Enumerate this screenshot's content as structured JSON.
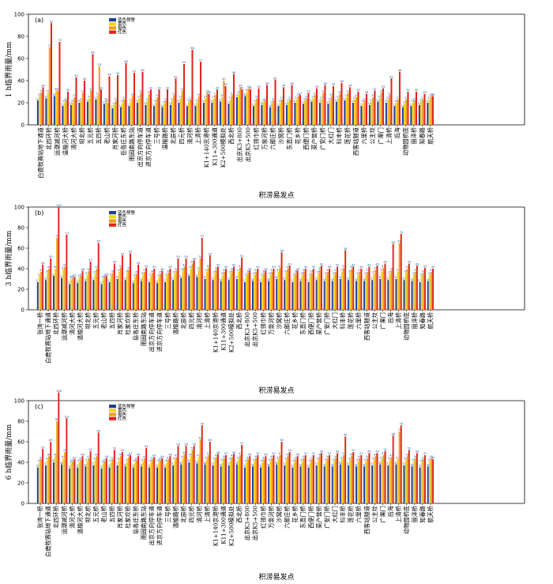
{
  "colors": {
    "blue": "#1f3f9a",
    "yellow": "#f4d21c",
    "orange": "#f29b1c",
    "red": "#e3231b"
  },
  "legend": [
    "蓝色预警",
    "黄色",
    "橙色",
    "红色"
  ],
  "xlabel": "积涝易发点",
  "chart_data": [
    {
      "type": "bar",
      "panel": "(a)",
      "ylabel": "1 h临界雨量/mm",
      "ylim": [
        0,
        100
      ],
      "yticks": [
        0,
        20,
        40,
        60,
        80,
        100
      ],
      "categories": [
        "白鹿牧赛站地下通道",
        "北四环桥",
        "运潮减河桥",
        "温榆河大桥",
        "清河大桥",
        "坝北桥",
        "五元桥",
        "五四桥",
        "老山桥",
        "肖家河桥",
        "岳各庄东桥",
        "雨园南路东站",
        "出京方向停车道",
        "进京方向停车道",
        "三号桥",
        "温榆路桥",
        "北辰桥",
        "四元桥",
        "清河桥",
        "上清桥",
        "K1+140京港桥",
        "K11+300通道",
        "K2+500模拟处",
        "西北桥",
        "出京K3+800",
        "出京K5+500",
        "红领巾桥",
        "万泉河桥",
        "六郎庄桥",
        "沙窝桥",
        "东直门桥",
        "花乡桥",
        "西便门桥",
        "菜户营桥",
        "广安门桥",
        "大红门",
        "科丰桥",
        "莲花桥",
        "西客站隧道",
        "六里桥",
        "公主坟",
        "广渠门",
        "上清桥",
        "后海",
        "动物园桥底",
        "丽泽桥",
        "知春路",
        "航天桥"
      ],
      "series": [
        {
          "name": "蓝色预警",
          "values": [
            22,
            24,
            26,
            17,
            18,
            20,
            21,
            23,
            19,
            15,
            16,
            17,
            20,
            18,
            17,
            16,
            18,
            20,
            17,
            17,
            20,
            20,
            21,
            19,
            25,
            26,
            17,
            18,
            16,
            17,
            18,
            20,
            19,
            21,
            20,
            19,
            21,
            22,
            20,
            17,
            18,
            21,
            20,
            17,
            16,
            17,
            18,
            20
          ]
        },
        {
          "name": "黄色",
          "values": [
            26,
            29,
            31,
            20,
            20,
            22,
            24,
            27,
            22,
            18,
            20,
            21,
            24,
            22,
            20,
            19,
            22,
            24,
            21,
            21,
            24,
            24,
            25,
            23,
            28,
            30,
            20,
            21,
            19,
            20,
            21,
            23,
            22,
            24,
            23,
            22,
            24,
            25,
            23,
            20,
            21,
            24,
            23,
            20,
            19,
            20,
            21,
            23
          ]
        },
        {
          "name": "橙色",
          "values": [
            29,
            70,
            31,
            22,
            25,
            29,
            31,
            53,
            20,
            22,
            23,
            26,
            29,
            28,
            25,
            22,
            27,
            31,
            23,
            26,
            29,
            27,
            40,
            27,
            34,
            33,
            24,
            22,
            22,
            23,
            23,
            26,
            24,
            27,
            29,
            26,
            28,
            29,
            25,
            22,
            25,
            29,
            27,
            23,
            23,
            22,
            23,
            26
          ]
        },
        {
          "name": "红色",
          "values": [
            34,
            92,
            75,
            30,
            43,
            40,
            64,
            32,
            44,
            45,
            56,
            47,
            48,
            32,
            32,
            32,
            42,
            55,
            68,
            57,
            28,
            32,
            35,
            46,
            32,
            32,
            33,
            36,
            41,
            34,
            36,
            27,
            29,
            33,
            36,
            35,
            38,
            34,
            30,
            28,
            31,
            33,
            42,
            48,
            30,
            30,
            28,
            26
          ]
        }
      ]
    },
    {
      "type": "bar",
      "panel": "(b)",
      "ylabel": "3 h临界雨量/mm",
      "ylim": [
        0,
        100
      ],
      "yticks": [
        0,
        20,
        40,
        60,
        80,
        100
      ],
      "categories": [
        "张湾一桥",
        "白鹿牧赛站地下通道",
        "北四环桥",
        "运潮减河桥",
        "清河大桥",
        "温榆河大桥",
        "坝北桥",
        "五元桥",
        "老山桥",
        "五四桥",
        "肖家河桥",
        "杜家坎桥",
        "岳各庄东桥",
        "雨园南路东站",
        "出京方向停车道",
        "进京方向停车道",
        "三号桥",
        "温榆路桥",
        "北辰桥",
        "四元桥",
        "清河桥",
        "上清桥",
        "K1+140京港桥",
        "K11+300通道",
        "K2+500模拟处",
        "西北桥",
        "出京K3+800",
        "出京K5+500",
        "红领巾桥",
        "万泉河桥",
        "沙窝桥",
        "六郎庄桥",
        "花乡桥",
        "东直门桥",
        "西便门桥",
        "菜户营桥",
        "广安门桥",
        "大红门",
        "科丰桥",
        "莲花桥",
        "六里桥",
        "西客站隧道",
        "公主坟",
        "广渠门",
        "后海",
        "上清桥",
        "动物园桥底",
        "丽泽桥",
        "知春路",
        "航天桥"
      ],
      "series": [
        {
          "name": "蓝色预警",
          "values": [
            27,
            29,
            33,
            31,
            25,
            26,
            28,
            29,
            25,
            27,
            30,
            29,
            26,
            28,
            27,
            26,
            27,
            29,
            31,
            33,
            32,
            30,
            29,
            28,
            29,
            30,
            27,
            28,
            27,
            28,
            30,
            29,
            27,
            28,
            27,
            29,
            28,
            28,
            30,
            29,
            28,
            28,
            29,
            30,
            29,
            30,
            29,
            28,
            27,
            28
          ]
        },
        {
          "name": "黄色",
          "values": [
            33,
            36,
            40,
            39,
            30,
            31,
            34,
            35,
            30,
            33,
            37,
            36,
            32,
            34,
            33,
            32,
            33,
            35,
            38,
            40,
            39,
            37,
            35,
            34,
            35,
            37,
            33,
            34,
            33,
            34,
            37,
            36,
            33,
            34,
            33,
            35,
            34,
            34,
            37,
            36,
            34,
            34,
            35,
            37,
            35,
            37,
            36,
            34,
            33,
            34
          ]
        },
        {
          "name": "橙色",
          "values": [
            37,
            40,
            70,
            42,
            31,
            33,
            38,
            40,
            32,
            36,
            41,
            39,
            35,
            37,
            36,
            35,
            36,
            38,
            42,
            45,
            50,
            41,
            39,
            37,
            38,
            41,
            36,
            37,
            36,
            37,
            41,
            40,
            36,
            37,
            36,
            39,
            37,
            37,
            41,
            40,
            37,
            37,
            39,
            41,
            38,
            65,
            40,
            37,
            36,
            37
          ]
        },
        {
          "name": "红色",
          "values": [
            44,
            50,
            100,
            73,
            32,
            38,
            47,
            65,
            33,
            45,
            53,
            55,
            44,
            41,
            40,
            38,
            40,
            50,
            50,
            48,
            70,
            53,
            42,
            40,
            42,
            51,
            38,
            40,
            38,
            40,
            56,
            43,
            38,
            40,
            40,
            43,
            40,
            42,
            58,
            42,
            40,
            42,
            43,
            45,
            64,
            74,
            45,
            43,
            41,
            40
          ]
        }
      ]
    },
    {
      "type": "bar",
      "panel": "(c)",
      "ylabel": "6 h临界雨量/mm",
      "ylim": [
        0,
        100
      ],
      "yticks": [
        0,
        20,
        40,
        60,
        80,
        100
      ],
      "categories": [
        "张湾一桥",
        "白鹿牧赛站地下通道",
        "北四环桥",
        "运潮减河桥",
        "清河大桥",
        "温榆河大桥",
        "坝北桥",
        "五元桥",
        "老山桥",
        "五四桥",
        "肖家河桥",
        "杜家坎桥",
        "岳各庄东桥",
        "雨园南路东站",
        "出京方向停车道",
        "进京方向停车道",
        "三号桥",
        "温榆路桥",
        "北辰桥",
        "四元桥",
        "清河桥",
        "上清桥",
        "K1+140京港桥",
        "K11+300通道",
        "K2+500模拟处",
        "西北桥",
        "出京K3+800",
        "出京K5+500",
        "红领巾桥",
        "万泉河桥",
        "沙窝桥",
        "六郎庄桥",
        "花乡桥",
        "东直门桥",
        "西便门桥",
        "菜户营桥",
        "广安门桥",
        "大红门",
        "科丰桥",
        "莲花桥",
        "六里桥",
        "西客站隧道",
        "公主坟",
        "广渠门",
        "后海",
        "上清桥",
        "动物园桥底",
        "丽泽桥",
        "知春路",
        "航天桥"
      ],
      "series": [
        {
          "name": "蓝色预警",
          "values": [
            35,
            37,
            40,
            38,
            34,
            35,
            36,
            37,
            34,
            35,
            37,
            36,
            35,
            36,
            35,
            35,
            35,
            37,
            38,
            40,
            39,
            38,
            37,
            36,
            37,
            38,
            35,
            36,
            35,
            36,
            38,
            37,
            35,
            36,
            35,
            37,
            36,
            36,
            38,
            37,
            36,
            36,
            37,
            38,
            37,
            38,
            37,
            36,
            35,
            36
          ]
        },
        {
          "name": "黄色",
          "values": [
            40,
            42,
            46,
            44,
            39,
            40,
            41,
            42,
            39,
            40,
            42,
            41,
            40,
            41,
            40,
            40,
            40,
            42,
            44,
            46,
            45,
            43,
            42,
            41,
            42,
            43,
            40,
            41,
            40,
            41,
            43,
            42,
            40,
            41,
            40,
            42,
            41,
            41,
            43,
            42,
            41,
            41,
            42,
            43,
            42,
            43,
            42,
            41,
            40,
            41
          ]
        },
        {
          "name": "橙色",
          "values": [
            43,
            46,
            80,
            50,
            41,
            42,
            44,
            46,
            41,
            43,
            46,
            45,
            42,
            44,
            43,
            42,
            43,
            45,
            48,
            52,
            62,
            47,
            45,
            44,
            45,
            47,
            43,
            44,
            43,
            44,
            47,
            46,
            43,
            44,
            43,
            46,
            44,
            44,
            47,
            46,
            44,
            44,
            46,
            47,
            45,
            70,
            46,
            44,
            43,
            44
          ]
        },
        {
          "name": "红色",
          "values": [
            53,
            60,
            108,
            83,
            43,
            46,
            51,
            69,
            44,
            52,
            50,
            47,
            46,
            54,
            45,
            44,
            46,
            56,
            56,
            56,
            76,
            60,
            48,
            47,
            48,
            57,
            46,
            47,
            46,
            47,
            60,
            50,
            46,
            47,
            47,
            49,
            47,
            49,
            65,
            50,
            47,
            49,
            49,
            51,
            66,
            76,
            52,
            49,
            47,
            43
          ]
        }
      ]
    }
  ]
}
